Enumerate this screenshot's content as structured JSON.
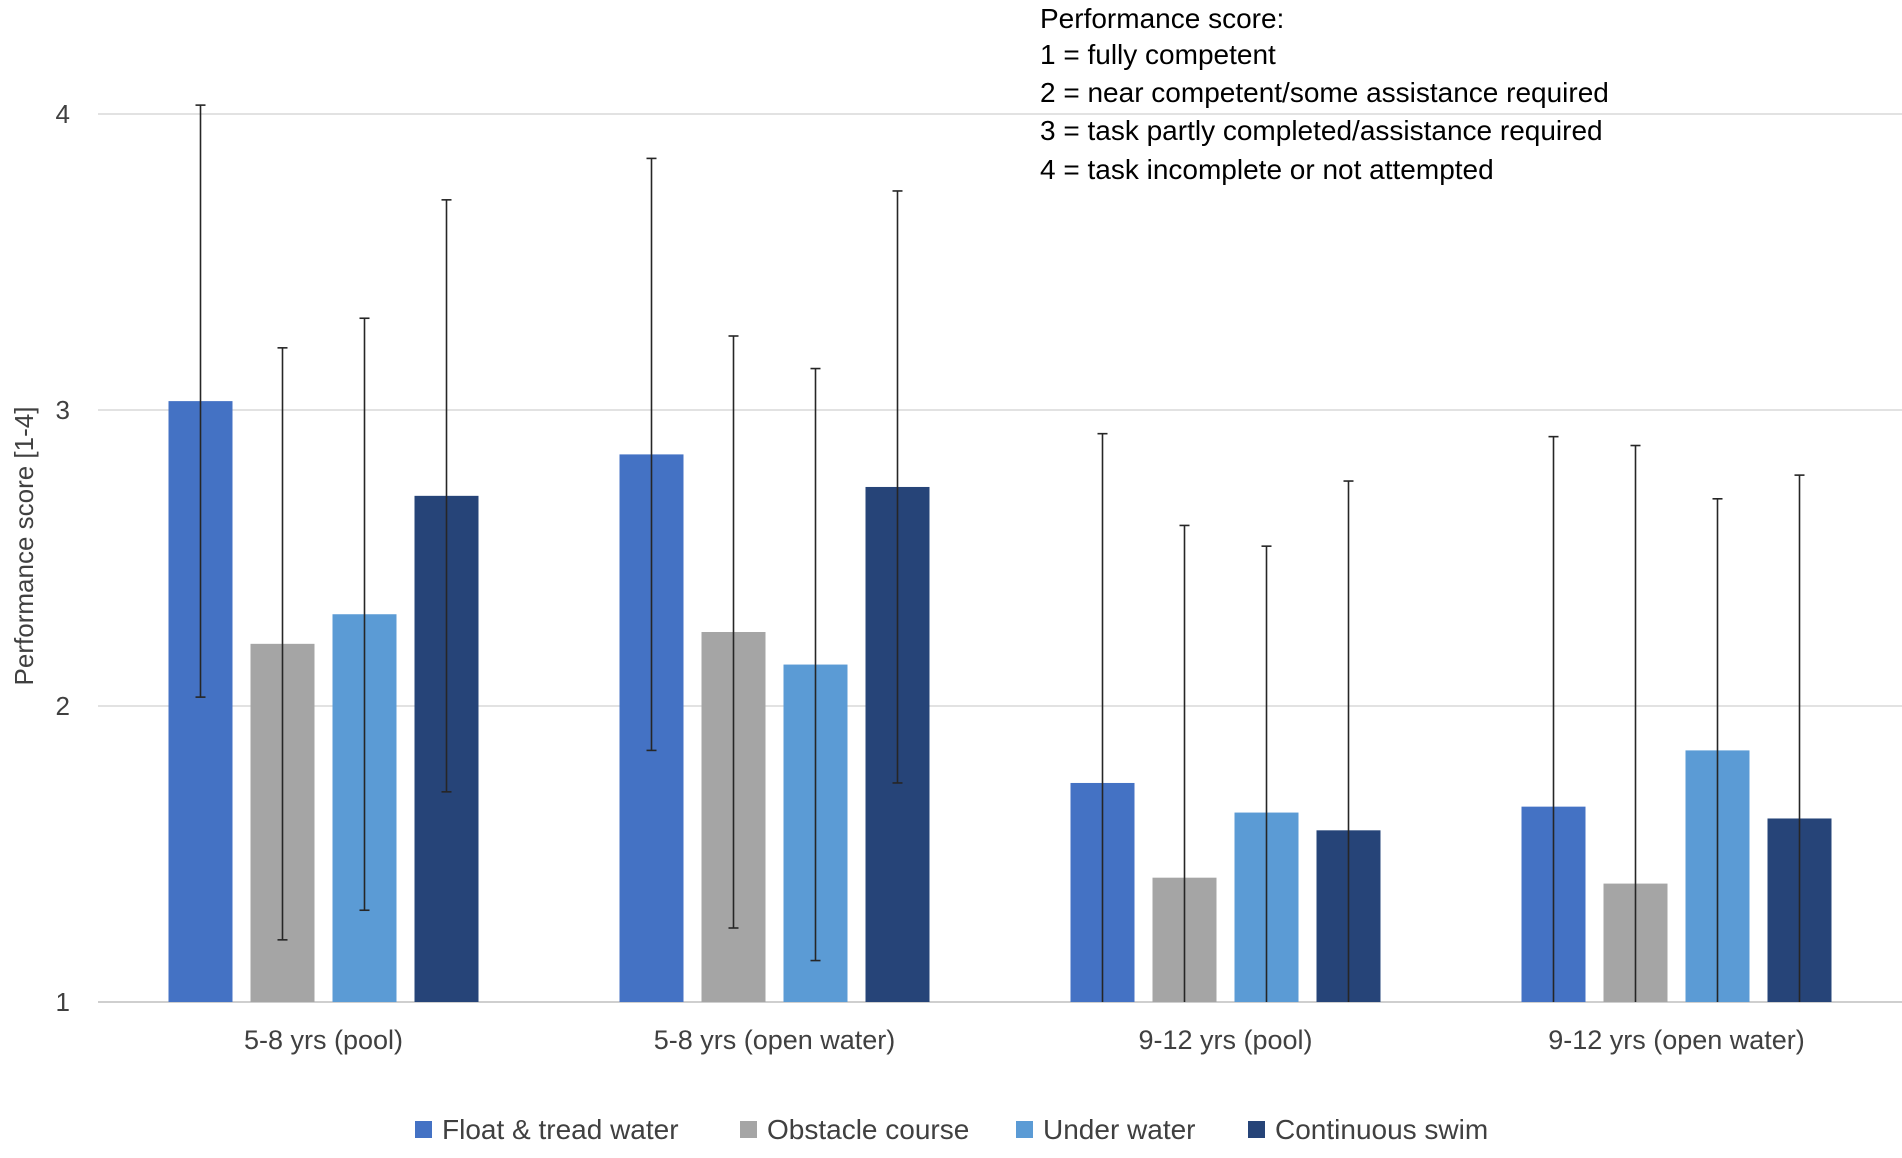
{
  "chart_data": {
    "type": "bar",
    "title": "",
    "xlabel": "",
    "ylabel": "Performance score [1-4]",
    "ylim": [
      1,
      4.25
    ],
    "yticks": [
      1,
      2,
      3,
      4
    ],
    "grid": true,
    "categories": [
      "5-8 yrs (pool)",
      "5-8 yrs (open water)",
      "9-12 yrs (pool)",
      "9-12 yrs (open water)"
    ],
    "series": [
      {
        "name": "Float & tread water",
        "color": "#4472C4",
        "values": [
          3.03,
          2.85,
          1.74,
          1.66
        ],
        "error": [
          1.0,
          1.0,
          1.18,
          1.25
        ]
      },
      {
        "name": "Obstacle course",
        "color": "#A5A5A5",
        "values": [
          2.21,
          2.25,
          1.42,
          1.4
        ],
        "error": [
          1.0,
          1.0,
          1.19,
          1.48
        ]
      },
      {
        "name": "Under water",
        "color": "#5B9BD5",
        "values": [
          2.31,
          2.14,
          1.64,
          1.85
        ],
        "error": [
          1.0,
          1.0,
          0.9,
          0.85
        ]
      },
      {
        "name": "Continuous swim",
        "color": "#264478",
        "values": [
          2.71,
          2.74,
          1.58,
          1.62
        ],
        "error": [
          1.0,
          1.0,
          1.18,
          1.16
        ]
      }
    ],
    "legend_position": "bottom",
    "annotation": {
      "lines": [
        "Performance score:",
        "1 = fully competent",
        "2 = near competent/some assistance required",
        "3 = task partly completed/assistance required",
        "4 = task incomplete or not attempted"
      ]
    }
  }
}
